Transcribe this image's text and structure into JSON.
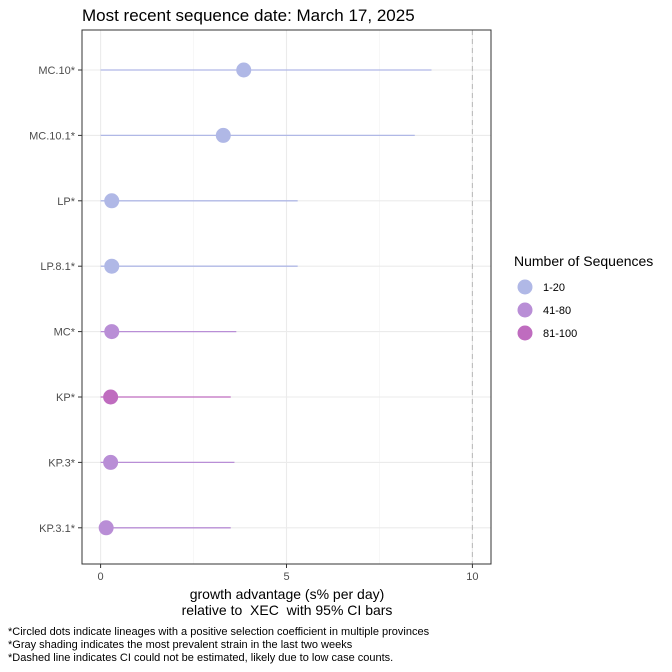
{
  "chart_data": {
    "type": "scatter",
    "title": "Most recent sequence date: March 17, 2025",
    "xlabel_line1": "growth advantage (s% per day)",
    "xlabel_line2": "relative to  XEC  with 95% CI bars",
    "ylabel": "",
    "xlim": [
      -0.5,
      10.5
    ],
    "x_ticks": [
      0,
      5,
      10
    ],
    "x_tick_labels": [
      "0",
      "5",
      "10"
    ],
    "reference_line_x": 10,
    "grid": true,
    "legend": {
      "title": "Number of Sequences",
      "placement": "right",
      "entries": [
        {
          "label": "1-20",
          "color": "#B0B8E6"
        },
        {
          "label": "41-80",
          "color": "#B98ED6"
        },
        {
          "label": "81-100",
          "color": "#BF6CBF"
        }
      ]
    },
    "categories": [
      "MC.10*",
      "MC.10.1*",
      "LP*",
      "LP.8.1*",
      "MC*",
      "KP*",
      "KP.3*",
      "KP.3.1*"
    ],
    "points": [
      {
        "lineage": "MC.10*",
        "value": 3.85,
        "ci_low": 0.0,
        "ci_high": 8.9,
        "group": "1-20"
      },
      {
        "lineage": "MC.10.1*",
        "value": 3.3,
        "ci_low": 0.0,
        "ci_high": 8.45,
        "group": "1-20"
      },
      {
        "lineage": "LP*",
        "value": 0.3,
        "ci_low": 0.0,
        "ci_high": 5.3,
        "group": "1-20"
      },
      {
        "lineage": "LP.8.1*",
        "value": 0.3,
        "ci_low": 0.0,
        "ci_high": 5.3,
        "group": "1-20"
      },
      {
        "lineage": "MC*",
        "value": 0.3,
        "ci_low": 0.0,
        "ci_high": 3.65,
        "group": "41-80"
      },
      {
        "lineage": "KP*",
        "value": 0.27,
        "ci_low": 0.0,
        "ci_high": 3.5,
        "group": "81-100"
      },
      {
        "lineage": "KP.3*",
        "value": 0.27,
        "ci_low": 0.0,
        "ci_high": 3.6,
        "group": "41-80"
      },
      {
        "lineage": "KP.3.1*",
        "value": 0.15,
        "ci_low": 0.0,
        "ci_high": 3.5,
        "group": "41-80"
      }
    ]
  },
  "footnotes": [
    "*Circled dots indicate lineages with a positive selection coefficient in multiple provinces",
    "*Gray shading indicates the most prevalent strain in the last two weeks",
    "*Dashed line indicates CI could not be estimated, likely due to low case counts."
  ]
}
